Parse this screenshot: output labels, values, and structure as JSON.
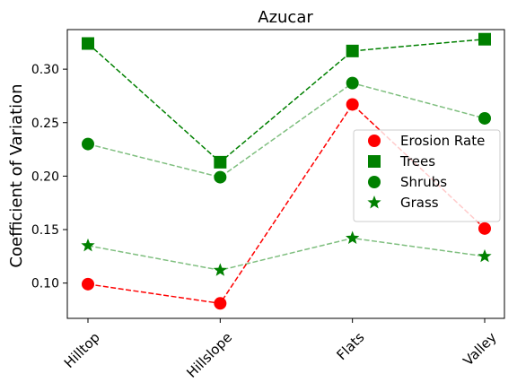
{
  "chart_data": {
    "type": "line",
    "title": "Azucar",
    "xlabel": "",
    "ylabel": "Coefficient of Variation",
    "categories": [
      "Hilltop",
      "Hillslope",
      "Flats",
      "Valley"
    ],
    "ylim": [
      0.067,
      0.337
    ],
    "yticks": [
      "0.10",
      "0.15",
      "0.20",
      "0.25",
      "0.30"
    ],
    "ytick_values": [
      0.1,
      0.15,
      0.2,
      0.25,
      0.3
    ],
    "grid": false,
    "legend_position": "center-right",
    "series": [
      {
        "name": "Erosion Rate",
        "values": [
          0.099,
          0.081,
          0.267,
          0.151
        ],
        "color": "#ff0000",
        "marker": "circle",
        "line_alpha": 1.0
      },
      {
        "name": "Trees",
        "values": [
          0.324,
          0.213,
          0.317,
          0.328
        ],
        "color": "#008000",
        "marker": "square",
        "line_alpha": 1.0
      },
      {
        "name": "Shrubs",
        "values": [
          0.23,
          0.199,
          0.287,
          0.254
        ],
        "color": "#008000",
        "marker": "circle",
        "line_alpha": 0.5
      },
      {
        "name": "Grass",
        "values": [
          0.135,
          0.112,
          0.142,
          0.125
        ],
        "color": "#008000",
        "marker": "star",
        "line_alpha": 0.5
      }
    ]
  }
}
